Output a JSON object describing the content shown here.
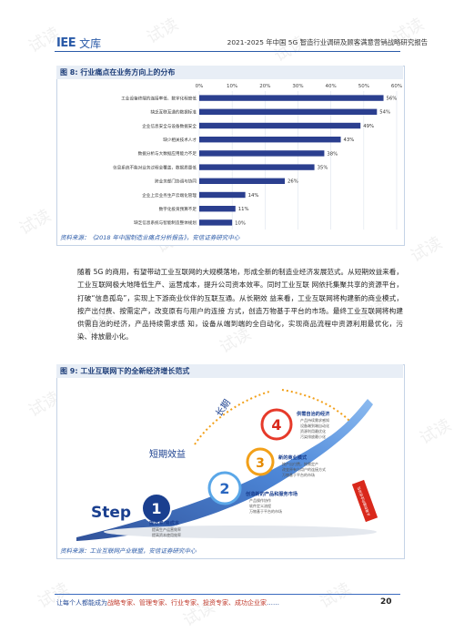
{
  "header": {
    "logo_mark": "IEE",
    "logo_name": "文库",
    "report_title": "2021-2025 年中国 5G 智造行业调研及顾客满意营销战略研究报告"
  },
  "figure8": {
    "title": "图 8: 行业痛点在业务方向上的分布",
    "source": "资料来源：《2018 年中国制造业痛点分析报告》，安信证券研究中心",
    "chart_data": {
      "type": "bar",
      "orientation": "horizontal",
      "categories": [
        "工业设备终端的连接率低、数字化程度低",
        "缺乏互联互通的数据标准",
        "企业信息安全与设备数据安全",
        "缺少相关技术人才",
        "数据分析与大数据应用能力不足",
        "信息系统不能对业务过程全覆盖，数据质量低",
        "跨业务部门协调与协同",
        "企业上云业务生产云端化管理",
        "数字化投资预算不足",
        "缺乏信息系统与智能制造整体规划"
      ],
      "values": [
        56,
        54,
        49,
        43,
        38,
        35,
        26,
        14,
        11,
        10
      ],
      "value_labels": [
        "56%",
        "54%",
        "49%",
        "43%",
        "38%",
        "35%",
        "26%",
        "14%",
        "11%",
        "10%"
      ],
      "xlim": [
        0,
        60
      ],
      "x_ticks": [
        "0%",
        "10%",
        "20%",
        "30%",
        "40%",
        "50%",
        "60%"
      ],
      "grid": true,
      "bar_color": "#2b3f8f"
    }
  },
  "paragraph": "随着 5G 的商用，有望带动工业互联网的大规模落地，形成全新的制造业经济发展范式。从短期效益来看，工业互联网极大地降低生产、运营成本，提升公司资本效率。同时工业互联 网依托集聚共享的资源平台，打破“信息孤岛”，实现上下游商业伙伴的互联互通。从长期效 益来看，工业互联网将构建新的商业模式，按产出付费、按需定产，改变原有与用户的连接 方式，创造万物基于平台的市场。最终工业互联网将构建供需自治的经济，产品持续需求感 知，设备从端到端的全自动化，实现商品流程中资源利用最优化，污染、排放最小化。",
  "figure9": {
    "title": "图 9: 工业互联网下的全新经济增长范式",
    "source": "资料来源：工业互联网产业联盟，安信证券研究中心",
    "step_word": "Step",
    "short_term": "短期效益",
    "long_term": "长期",
    "steps": [
      {
        "num": "1",
        "title": "提效率/降成本",
        "items": [
          "提高生产运营效率",
          "提高资本使用效率"
        ]
      },
      {
        "num": "2",
        "title": "创造新的产品和服务市场",
        "items": [
          "产品操作协作",
          "软件定义流程",
          "万物基于平台的市场"
        ]
      },
      {
        "num": "3",
        "title": "新的商业模式",
        "items": [
          "按产出付费，按需定产",
          "改变原有与用户的连接方式",
          "万物基于平台的市场"
        ]
      },
      {
        "num": "4",
        "title": "供需自治的经济",
        "items": [
          "产品持续需求感知",
          "设备端到端自动化",
          "资源利用最优化",
          "污染排放最小化"
        ]
      }
    ],
    "side_label": "从端到端的全自动化"
  },
  "footer": {
    "text_prefix": "让每个人都能成为",
    "text_highlight": "战略专家、管理专家、行业专家、投资专家、成功企业家",
    "text_suffix": "……",
    "page_number": "20"
  },
  "watermark": "试读"
}
